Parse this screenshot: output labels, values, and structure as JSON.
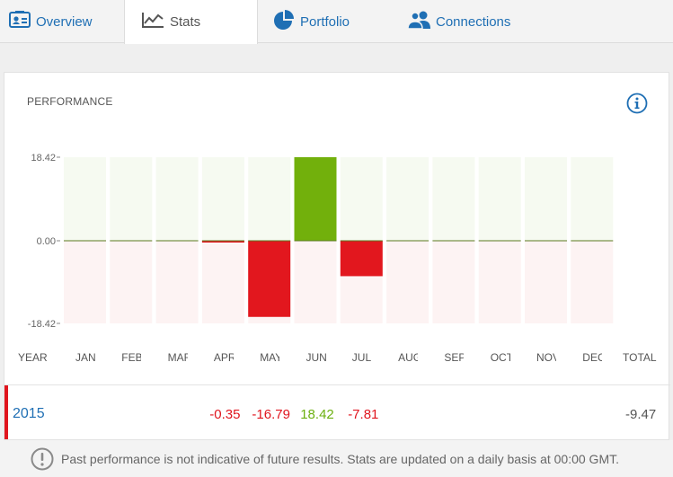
{
  "tabs": [
    {
      "label": "Overview",
      "icon": "id-card-icon",
      "active": false
    },
    {
      "label": "Stats",
      "icon": "line-chart-icon",
      "active": true
    },
    {
      "label": "Portfolio",
      "icon": "pie-chart-icon",
      "active": false
    },
    {
      "label": "Connections",
      "icon": "users-icon",
      "active": false
    }
  ],
  "card": {
    "title": "PERFORMANCE",
    "info_icon": "info-icon"
  },
  "table": {
    "year_header": "YEAR",
    "total_header": "TOTAL",
    "months": [
      "JAN",
      "FEB",
      "MAR",
      "APR",
      "MAY",
      "JUN",
      "JUL",
      "AUG",
      "SEP",
      "OCT",
      "NOV",
      "DEC"
    ],
    "row": {
      "year": "2015",
      "values": [
        "",
        "",
        "",
        "-0.35",
        "-16.79",
        "18.42",
        "-7.81",
        "",
        "",
        "",
        "",
        ""
      ],
      "total": "-9.47"
    }
  },
  "chart_data": {
    "type": "bar",
    "categories": [
      "JAN",
      "FEB",
      "MAR",
      "APR",
      "MAY",
      "JUN",
      "JUL",
      "AUG",
      "SEP",
      "OCT",
      "NOV",
      "DEC"
    ],
    "values": [
      0,
      0,
      0,
      -0.35,
      -16.79,
      18.42,
      -7.81,
      0,
      0,
      0,
      0,
      0
    ],
    "ylim": [
      -18.42,
      18.42
    ],
    "yticks": [
      "18.42",
      "0.00",
      "-18.42"
    ],
    "positive_color": "#72b00c",
    "negative_color": "#e2171e",
    "positive_bg": "#f6faf1",
    "negative_bg": "#fdf3f3"
  },
  "footer": {
    "icon": "exclamation-circle-icon",
    "text": "Past performance is not indicative of future results. Stats are updated on a daily basis at 00:00 GMT."
  },
  "colors": {
    "accent": "#1f6fb4",
    "negative": "#e0151e",
    "positive": "#6cb010"
  }
}
